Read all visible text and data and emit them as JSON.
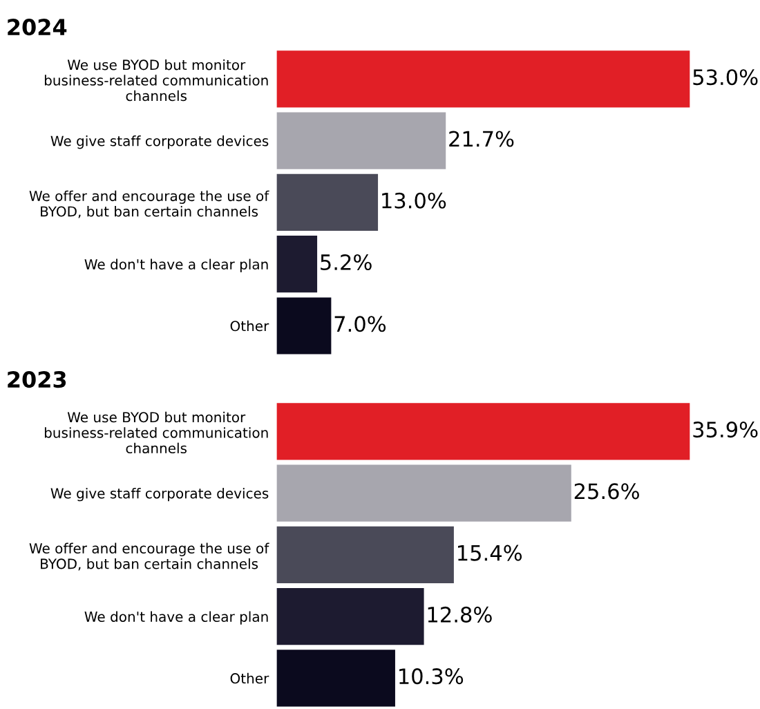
{
  "chart_data": [
    {
      "type": "bar",
      "orientation": "horizontal",
      "title": "2024",
      "categories": [
        "We use BYOD but monitor\nbusiness-related communication\nchannels",
        "We give staff corporate devices",
        "We offer and encourage the use of\nBYOD, but ban certain channels",
        "We don't have a clear plan",
        "Other"
      ],
      "values": [
        53.0,
        21.7,
        13.0,
        5.2,
        7.0
      ],
      "value_labels": [
        "53.0%",
        "21.7%",
        "13.0%",
        "5.2%",
        "7.0%"
      ],
      "colors": [
        "#e11f26",
        "#a7a6ae",
        "#4a4a58",
        "#1d1b30",
        "#0b0a1e"
      ]
    },
    {
      "type": "bar",
      "orientation": "horizontal",
      "title": "2023",
      "categories": [
        "We use BYOD but monitor\nbusiness-related communication\nchannels",
        "We give staff corporate devices",
        "We offer and encourage the use of\nBYOD, but ban certain channels",
        "We don't have a clear plan",
        "Other"
      ],
      "values": [
        35.9,
        25.6,
        15.4,
        12.8,
        10.3
      ],
      "value_labels": [
        "35.9%",
        "25.6%",
        "15.4%",
        "12.8%",
        "10.3%"
      ],
      "colors": [
        "#e11f26",
        "#a7a6ae",
        "#4a4a58",
        "#1d1b30",
        "#0b0a1e"
      ]
    }
  ]
}
